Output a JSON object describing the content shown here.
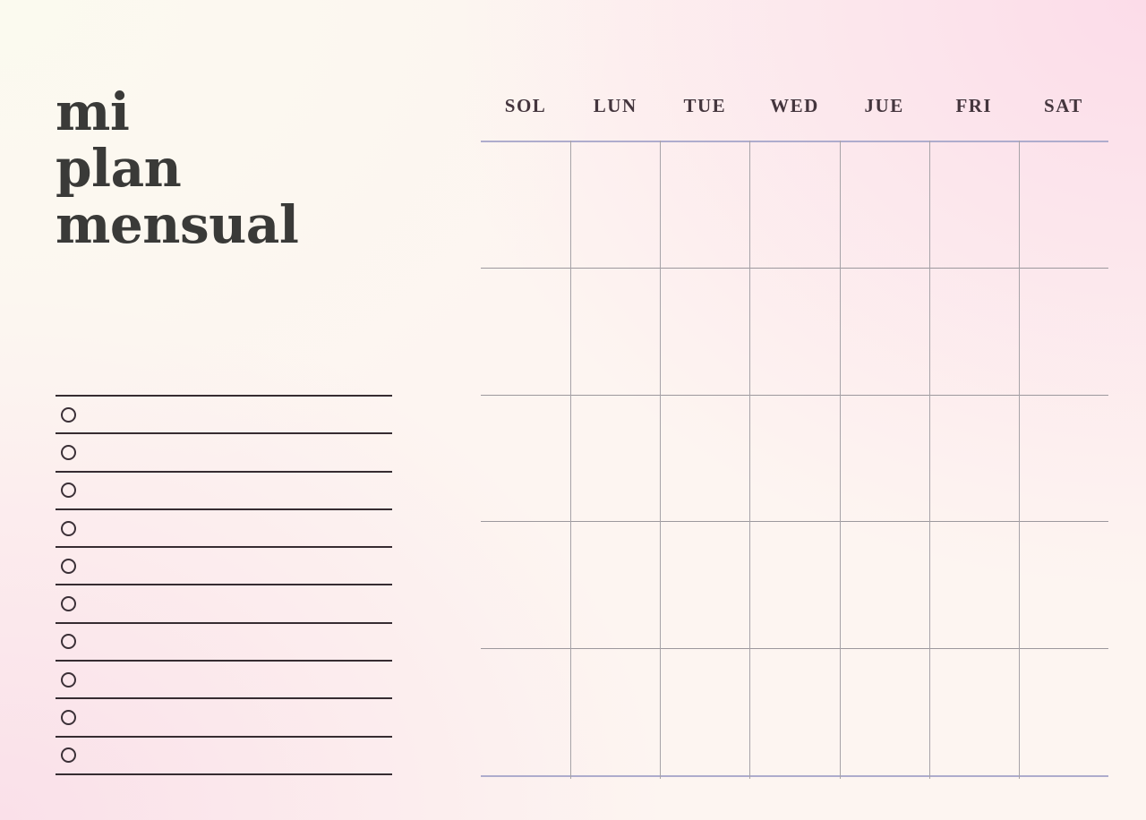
{
  "document": {
    "type": "monthly-planner-template"
  },
  "title": {
    "text": "mi plan mensual",
    "lines": [
      "mi",
      "plan",
      "mensual"
    ],
    "color": "#3a3a38"
  },
  "todo_list": {
    "row_count": 10,
    "has_top_line": true,
    "bullet_style": "open-circle",
    "line_color": "#362c31",
    "bullet_color": "#3b3037"
  },
  "calendar": {
    "day_headers": [
      "SOL",
      "LUN",
      "TUE",
      "WED",
      "JUE",
      "FRI",
      "SAT"
    ],
    "week_rows": 5,
    "day_columns": 7,
    "header_text_color": "#44353d",
    "accent_line_color": "#aeaccd",
    "row_line_color": "#9c989d",
    "column_line_color": "#a7a3a8"
  },
  "background": {
    "cream_top_left": "#fbfaef",
    "pink_top_right": "#fcdce9",
    "pink_bottom_left": "#fae0e9",
    "base": "#fdf5f1"
  }
}
